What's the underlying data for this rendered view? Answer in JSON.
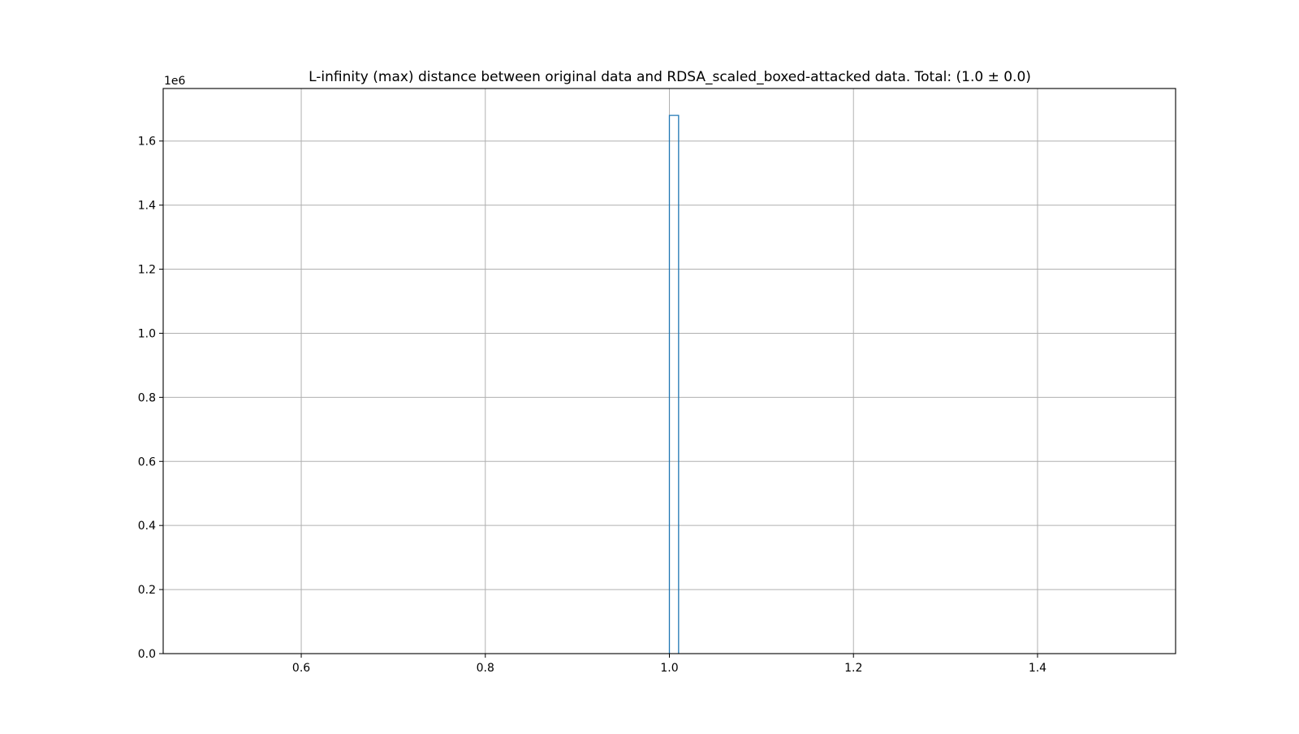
{
  "chart_data": {
    "type": "bar",
    "subtype": "histogram-step",
    "title": "L-infinity (max) distance between original data and RDSA_scaled_boxed-attacked data. Total: (1.0 ± 0.0)",
    "xlabel": "",
    "ylabel": "",
    "xlim": [
      0.45,
      1.55
    ],
    "ylim": [
      0,
      1764000
    ],
    "y_offset_label": "1e6",
    "y_scale": 1000000,
    "x_ticks": [
      0.6,
      0.8,
      1.0,
      1.2,
      1.4
    ],
    "x_tick_labels": [
      "0.6",
      "0.8",
      "1.0",
      "1.2",
      "1.4"
    ],
    "y_ticks": [
      0,
      200000,
      400000,
      600000,
      800000,
      1000000,
      1200000,
      1400000,
      1600000
    ],
    "y_tick_labels": [
      "0.0",
      "0.2",
      "0.4",
      "0.6",
      "0.8",
      "1.0",
      "1.2",
      "1.4",
      "1.6"
    ],
    "bins": [
      {
        "x0": 1.0,
        "x1": 1.01,
        "count": 1680000
      }
    ],
    "grid": true,
    "legend": "none",
    "colors": {
      "series": "#1f77b4",
      "grid": "#b0b0b0",
      "axes": "#000000"
    }
  }
}
